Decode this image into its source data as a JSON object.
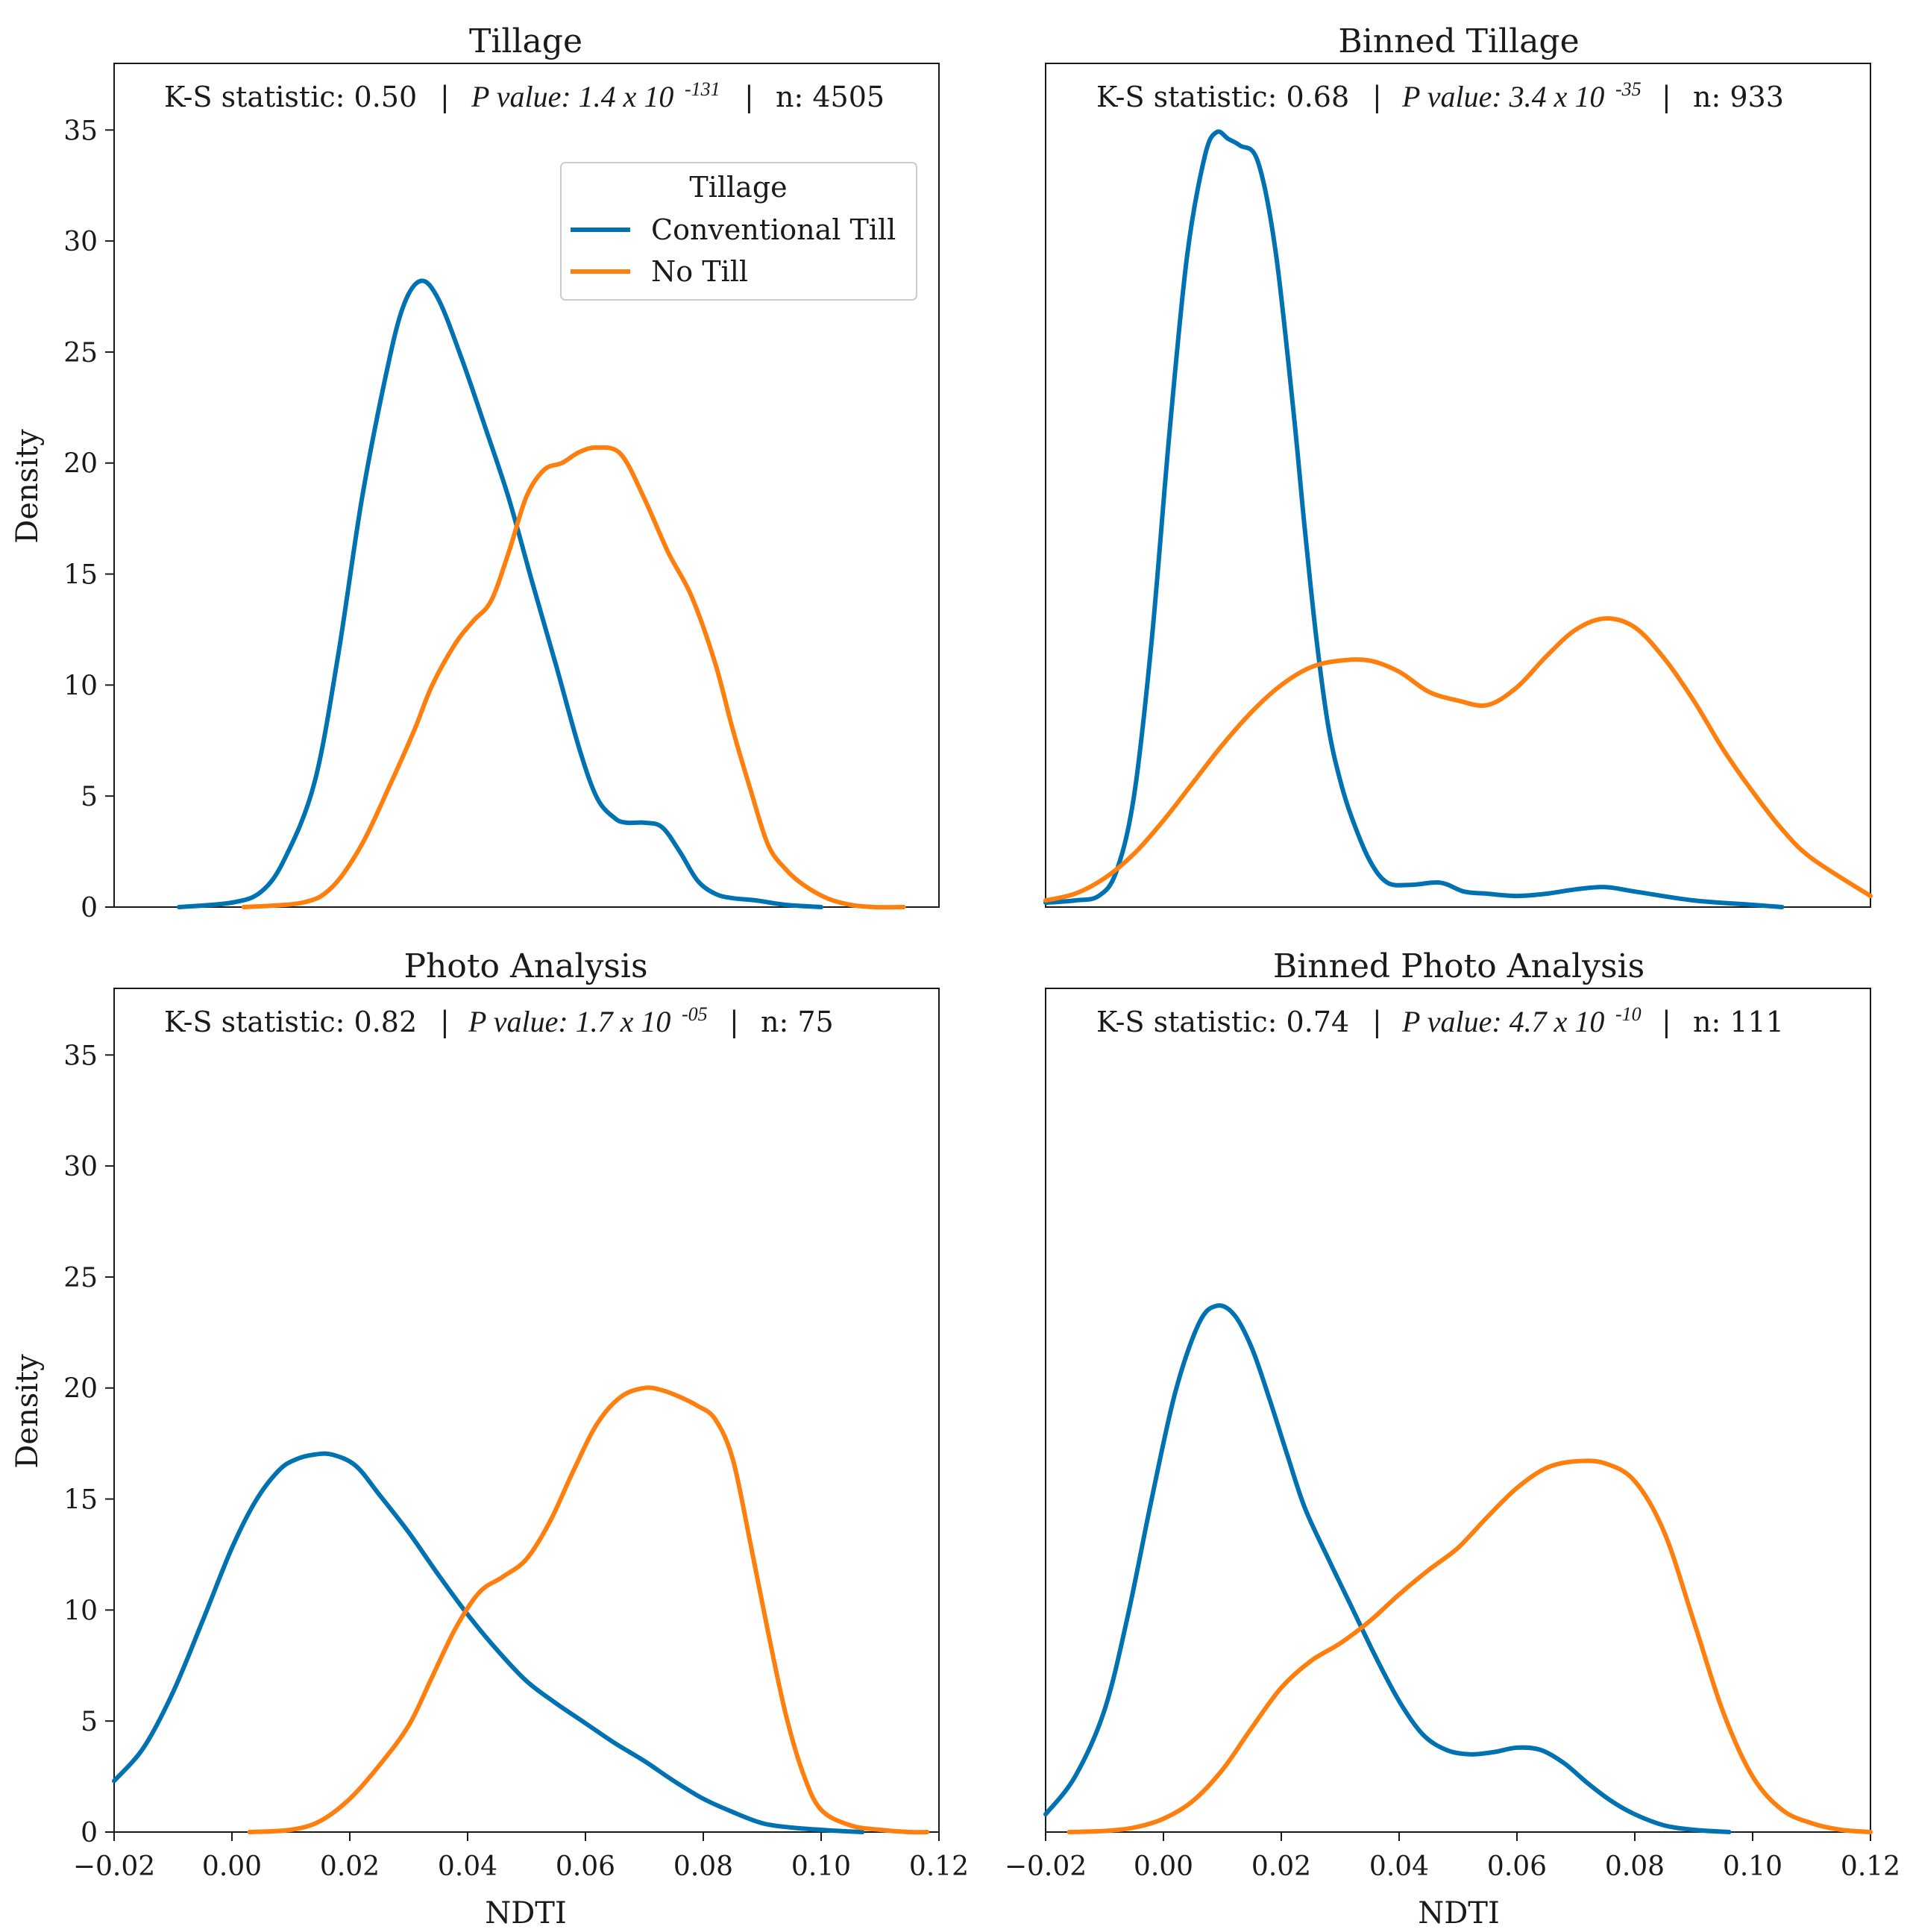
{
  "figure": {
    "xlabel": "NDTI",
    "ylabel": "Density"
  },
  "colors": {
    "conventional": "#0072b2",
    "notill": "#ff7f0e",
    "axis": "#1a1a1a"
  },
  "legend": {
    "title": "Tillage",
    "entries": [
      "Conventional Till",
      "No Till"
    ]
  },
  "chart_data": [
    {
      "type": "line",
      "title": "Tillage",
      "annotation": {
        "ks": "K-S statistic: 0.50",
        "p_label": "P value: 1.4 x 10",
        "p_exp": "-131",
        "n": "n: 4505",
        "sep": "|"
      },
      "xlim": [
        -0.02,
        0.12
      ],
      "ylim": [
        0,
        38
      ],
      "yticks": [
        "0",
        "5",
        "10",
        "15",
        "20",
        "25",
        "30",
        "35"
      ],
      "xticks": [],
      "ylabel": "Density",
      "xlabel": "",
      "series": [
        {
          "name": "Conventional Till",
          "x": [
            -0.009,
            0.0,
            0.005,
            0.009,
            0.014,
            0.018,
            0.022,
            0.026,
            0.029,
            0.032,
            0.035,
            0.039,
            0.043,
            0.047,
            0.051,
            0.055,
            0.059,
            0.062,
            0.065,
            0.067,
            0.07,
            0.073,
            0.076,
            0.079,
            0.082,
            0.085,
            0.089,
            0.094,
            0.1
          ],
          "y": [
            0,
            0.2,
            0.7,
            2.2,
            5.6,
            11.3,
            18.3,
            23.8,
            27.0,
            28.2,
            27.4,
            24.7,
            21.6,
            18.4,
            14.6,
            10.9,
            7.1,
            4.9,
            4.0,
            3.8,
            3.8,
            3.6,
            2.5,
            1.2,
            0.6,
            0.4,
            0.3,
            0.1,
            0
          ]
        },
        {
          "name": "No Till",
          "x": [
            0.002,
            0.012,
            0.017,
            0.022,
            0.027,
            0.031,
            0.034,
            0.038,
            0.041,
            0.044,
            0.047,
            0.05,
            0.053,
            0.056,
            0.059,
            0.062,
            0.066,
            0.07,
            0.074,
            0.078,
            0.082,
            0.085,
            0.088,
            0.091,
            0.094,
            0.097,
            0.101,
            0.105,
            0.109,
            0.114
          ],
          "y": [
            0,
            0.2,
            0.9,
            2.8,
            5.6,
            8.0,
            10.0,
            11.9,
            12.9,
            13.8,
            16.0,
            18.5,
            19.7,
            20.0,
            20.5,
            20.7,
            20.4,
            18.4,
            16.0,
            14.0,
            11.0,
            8.0,
            5.3,
            2.8,
            1.7,
            1.0,
            0.4,
            0.1,
            0,
            0
          ]
        }
      ]
    },
    {
      "type": "line",
      "title": "Binned Tillage",
      "annotation": {
        "ks": "K-S statistic: 0.68",
        "p_label": "P value: 3.4 x 10",
        "p_exp": "-35",
        "n": "n: 933",
        "sep": "|"
      },
      "xlim": [
        -0.02,
        0.12
      ],
      "ylim": [
        0,
        38
      ],
      "yticks": [],
      "xticks": [],
      "ylabel": "",
      "xlabel": "",
      "series": [
        {
          "name": "Conventional Till",
          "x": [
            -0.02,
            -0.015,
            -0.011,
            -0.008,
            -0.005,
            -0.002,
            0.001,
            0.004,
            0.007,
            0.009,
            0.011,
            0.013,
            0.016,
            0.019,
            0.022,
            0.024,
            0.026,
            0.028,
            0.03,
            0.032,
            0.035,
            0.038,
            0.042,
            0.047,
            0.051,
            0.055,
            0.06,
            0.065,
            0.07,
            0.075,
            0.08,
            0.09,
            0.1,
            0.105
          ],
          "y": [
            0.2,
            0.3,
            0.5,
            1.6,
            5.0,
            12.0,
            21.3,
            29.3,
            33.8,
            34.9,
            34.6,
            34.3,
            33.6,
            29.6,
            22.5,
            17.0,
            12.0,
            8.1,
            5.7,
            4.0,
            2.1,
            1.1,
            1.0,
            1.1,
            0.7,
            0.6,
            0.5,
            0.6,
            0.8,
            0.9,
            0.7,
            0.3,
            0.1,
            0
          ]
        },
        {
          "name": "No Till",
          "x": [
            -0.02,
            -0.015,
            -0.01,
            -0.005,
            0.0,
            0.005,
            0.01,
            0.015,
            0.02,
            0.025,
            0.03,
            0.035,
            0.04,
            0.045,
            0.05,
            0.055,
            0.06,
            0.065,
            0.07,
            0.075,
            0.08,
            0.085,
            0.09,
            0.095,
            0.1,
            0.105,
            0.11,
            0.12
          ],
          "y": [
            0.3,
            0.6,
            1.3,
            2.4,
            3.9,
            5.6,
            7.3,
            8.8,
            10.0,
            10.8,
            11.1,
            11.1,
            10.6,
            9.7,
            9.3,
            9.1,
            9.9,
            11.3,
            12.5,
            13.0,
            12.6,
            11.2,
            9.3,
            7.1,
            5.2,
            3.5,
            2.2,
            0.5
          ]
        }
      ]
    },
    {
      "type": "line",
      "title": "Photo Analysis",
      "annotation": {
        "ks": "K-S statistic: 0.82",
        "p_label": "P value: 1.7 x 10",
        "p_exp": "-05",
        "n": "n: 75",
        "sep": "|"
      },
      "xlim": [
        -0.02,
        0.12
      ],
      "ylim": [
        0,
        38
      ],
      "yticks": [
        "0",
        "5",
        "10",
        "15",
        "20",
        "25",
        "30",
        "35"
      ],
      "xticks": [
        "−0.02",
        "0.00",
        "0.02",
        "0.04",
        "0.06",
        "0.08",
        "0.10",
        "0.12"
      ],
      "ylabel": "Density",
      "xlabel": "NDTI",
      "series": [
        {
          "name": "Conventional Till",
          "x": [
            -0.02,
            -0.015,
            -0.01,
            -0.005,
            0.0,
            0.004,
            0.008,
            0.011,
            0.014,
            0.017,
            0.021,
            0.025,
            0.03,
            0.035,
            0.04,
            0.045,
            0.05,
            0.055,
            0.06,
            0.065,
            0.07,
            0.075,
            0.08,
            0.085,
            0.09,
            0.095,
            0.1,
            0.103,
            0.107
          ],
          "y": [
            2.3,
            3.8,
            6.3,
            9.5,
            12.8,
            14.9,
            16.3,
            16.8,
            17.0,
            17.0,
            16.5,
            15.2,
            13.5,
            11.6,
            9.8,
            8.2,
            6.8,
            5.8,
            4.9,
            4.0,
            3.2,
            2.3,
            1.5,
            0.9,
            0.4,
            0.2,
            0.1,
            0.05,
            0
          ]
        },
        {
          "name": "No Till",
          "x": [
            0.003,
            0.01,
            0.015,
            0.02,
            0.025,
            0.03,
            0.034,
            0.038,
            0.042,
            0.046,
            0.05,
            0.054,
            0.058,
            0.062,
            0.066,
            0.07,
            0.073,
            0.076,
            0.079,
            0.082,
            0.085,
            0.088,
            0.091,
            0.094,
            0.097,
            0.1,
            0.105,
            0.11,
            0.115,
            0.118
          ],
          "y": [
            0,
            0.1,
            0.5,
            1.5,
            3.0,
            4.8,
            7.0,
            9.2,
            10.8,
            11.5,
            12.3,
            14.0,
            16.3,
            18.4,
            19.6,
            20.0,
            19.9,
            19.6,
            19.2,
            18.6,
            16.8,
            13.0,
            9.0,
            5.3,
            2.6,
            1.0,
            0.3,
            0.1,
            0,
            0
          ]
        }
      ]
    },
    {
      "type": "line",
      "title": "Binned Photo Analysis",
      "annotation": {
        "ks": "K-S statistic: 0.74",
        "p_label": "P value: 4.7 x 10",
        "p_exp": "-10",
        "n": "n: 111",
        "sep": "|"
      },
      "xlim": [
        -0.02,
        0.12
      ],
      "ylim": [
        0,
        38
      ],
      "yticks": [],
      "xticks": [
        "−0.02",
        "0.00",
        "0.02",
        "0.04",
        "0.06",
        "0.08",
        "0.10",
        "0.12"
      ],
      "ylabel": "",
      "xlabel": "NDTI",
      "series": [
        {
          "name": "Conventional Till",
          "x": [
            -0.02,
            -0.015,
            -0.01,
            -0.006,
            -0.002,
            0.002,
            0.006,
            0.009,
            0.012,
            0.015,
            0.018,
            0.021,
            0.024,
            0.028,
            0.032,
            0.036,
            0.04,
            0.044,
            0.048,
            0.052,
            0.056,
            0.06,
            0.064,
            0.068,
            0.072,
            0.076,
            0.08,
            0.085,
            0.09,
            0.096
          ],
          "y": [
            0.8,
            2.5,
            5.5,
            9.8,
            15.0,
            19.8,
            22.9,
            23.7,
            23.3,
            21.8,
            19.5,
            17.0,
            14.6,
            12.3,
            10.1,
            7.9,
            5.9,
            4.4,
            3.7,
            3.5,
            3.6,
            3.8,
            3.7,
            3.1,
            2.2,
            1.4,
            0.8,
            0.3,
            0.1,
            0
          ]
        },
        {
          "name": "No Till",
          "x": [
            -0.016,
            -0.01,
            -0.005,
            0.0,
            0.005,
            0.01,
            0.015,
            0.02,
            0.025,
            0.03,
            0.035,
            0.04,
            0.045,
            0.05,
            0.055,
            0.06,
            0.065,
            0.07,
            0.075,
            0.08,
            0.085,
            0.09,
            0.095,
            0.1,
            0.105,
            0.11,
            0.115,
            0.12
          ],
          "y": [
            0,
            0.05,
            0.2,
            0.6,
            1.4,
            2.8,
            4.7,
            6.5,
            7.7,
            8.5,
            9.5,
            10.7,
            11.8,
            12.8,
            14.2,
            15.5,
            16.4,
            16.7,
            16.6,
            15.8,
            13.5,
            9.5,
            5.4,
            2.5,
            1.0,
            0.4,
            0.1,
            0
          ]
        }
      ]
    }
  ]
}
